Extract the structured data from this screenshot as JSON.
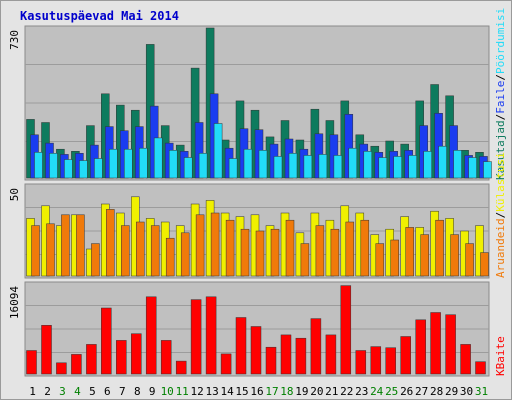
{
  "title": "Kasutuspäevad Mai 2014",
  "chart_data": [
    {
      "type": "bar",
      "panel": "top",
      "ymax_label": "730",
      "ylim": [
        0,
        730
      ],
      "categories": [
        "1",
        "2",
        "3",
        "4",
        "5",
        "6",
        "7",
        "8",
        "9",
        "10",
        "11",
        "12",
        "13",
        "14",
        "15",
        "16",
        "17",
        "18",
        "19",
        "20",
        "21",
        "22",
        "23",
        "24",
        "25",
        "26",
        "27",
        "28",
        "29",
        "30",
        "31"
      ],
      "weekend_days": [
        "3",
        "4",
        "10",
        "11",
        "17",
        "18",
        "24",
        "25",
        "31"
      ],
      "series": [
        {
          "name": "Kasutajad",
          "color": "#0e7b5e",
          "values": [
            285,
            270,
            140,
            130,
            255,
            410,
            355,
            330,
            650,
            255,
            160,
            535,
            730,
            185,
            375,
            330,
            200,
            280,
            185,
            335,
            280,
            375,
            210,
            155,
            180,
            165,
            375,
            455,
            400,
            135,
            125
          ]
        },
        {
          "name": "Faile",
          "color": "#1a3cf0",
          "values": [
            210,
            170,
            115,
            120,
            160,
            250,
            230,
            250,
            350,
            170,
            130,
            270,
            410,
            145,
            240,
            235,
            165,
            190,
            140,
            215,
            210,
            310,
            165,
            125,
            130,
            135,
            255,
            315,
            255,
            110,
            105
          ]
        },
        {
          "name": "Pöördumisi",
          "color": "#22dcf8",
          "values": [
            125,
            120,
            90,
            85,
            95,
            140,
            140,
            145,
            195,
            135,
            100,
            120,
            265,
            95,
            140,
            135,
            105,
            120,
            110,
            115,
            110,
            145,
            130,
            100,
            105,
            110,
            130,
            155,
            135,
            100,
            80
          ]
        }
      ],
      "right_labels": [
        "Kasutajad",
        "Faile",
        "Pöördumisi"
      ]
    },
    {
      "type": "bar",
      "panel": "middle",
      "ymax_label": "50",
      "ylim": [
        0,
        50
      ],
      "series": [
        {
          "name": "Külastusi",
          "color": "#f0f000",
          "values": [
            32,
            39,
            28,
            34,
            15,
            40,
            35,
            44,
            32,
            30,
            28,
            40,
            42,
            35,
            33,
            34,
            28,
            35,
            24,
            35,
            31,
            39,
            35,
            23,
            26,
            33,
            27,
            36,
            32,
            25,
            28
          ]
        },
        {
          "name": "Aruandeid",
          "color": "#f07a0a",
          "values": [
            28,
            29,
            34,
            34,
            18,
            37,
            28,
            30,
            28,
            21,
            24,
            34,
            35,
            31,
            26,
            25,
            26,
            31,
            18,
            28,
            26,
            30,
            31,
            18,
            20,
            27,
            23,
            31,
            23,
            18,
            13
          ]
        }
      ],
      "right_labels": [
        "Aruandeid",
        "Külastusi"
      ]
    },
    {
      "type": "bar",
      "panel": "bottom",
      "ymax_label": "16094",
      "ylim": [
        0,
        16094
      ],
      "series": [
        {
          "name": "KBaite",
          "color": "#ff0000",
          "values": [
            4200,
            8700,
            2000,
            3500,
            5300,
            11800,
            6000,
            7200,
            13800,
            6000,
            2300,
            13300,
            13800,
            3600,
            10100,
            8500,
            4800,
            7000,
            6400,
            9900,
            7000,
            15800,
            4200,
            4900,
            4700,
            6700,
            9700,
            11000,
            10600,
            5300,
            2200
          ]
        }
      ],
      "right_labels": [
        "KBaite"
      ]
    }
  ],
  "colors": {
    "title": "#0000cc",
    "panel_bg": "#c0c0c0",
    "frame_bg": "#e4e4e4",
    "weekend_label": "#008000",
    "weekday_label": "#000000"
  }
}
